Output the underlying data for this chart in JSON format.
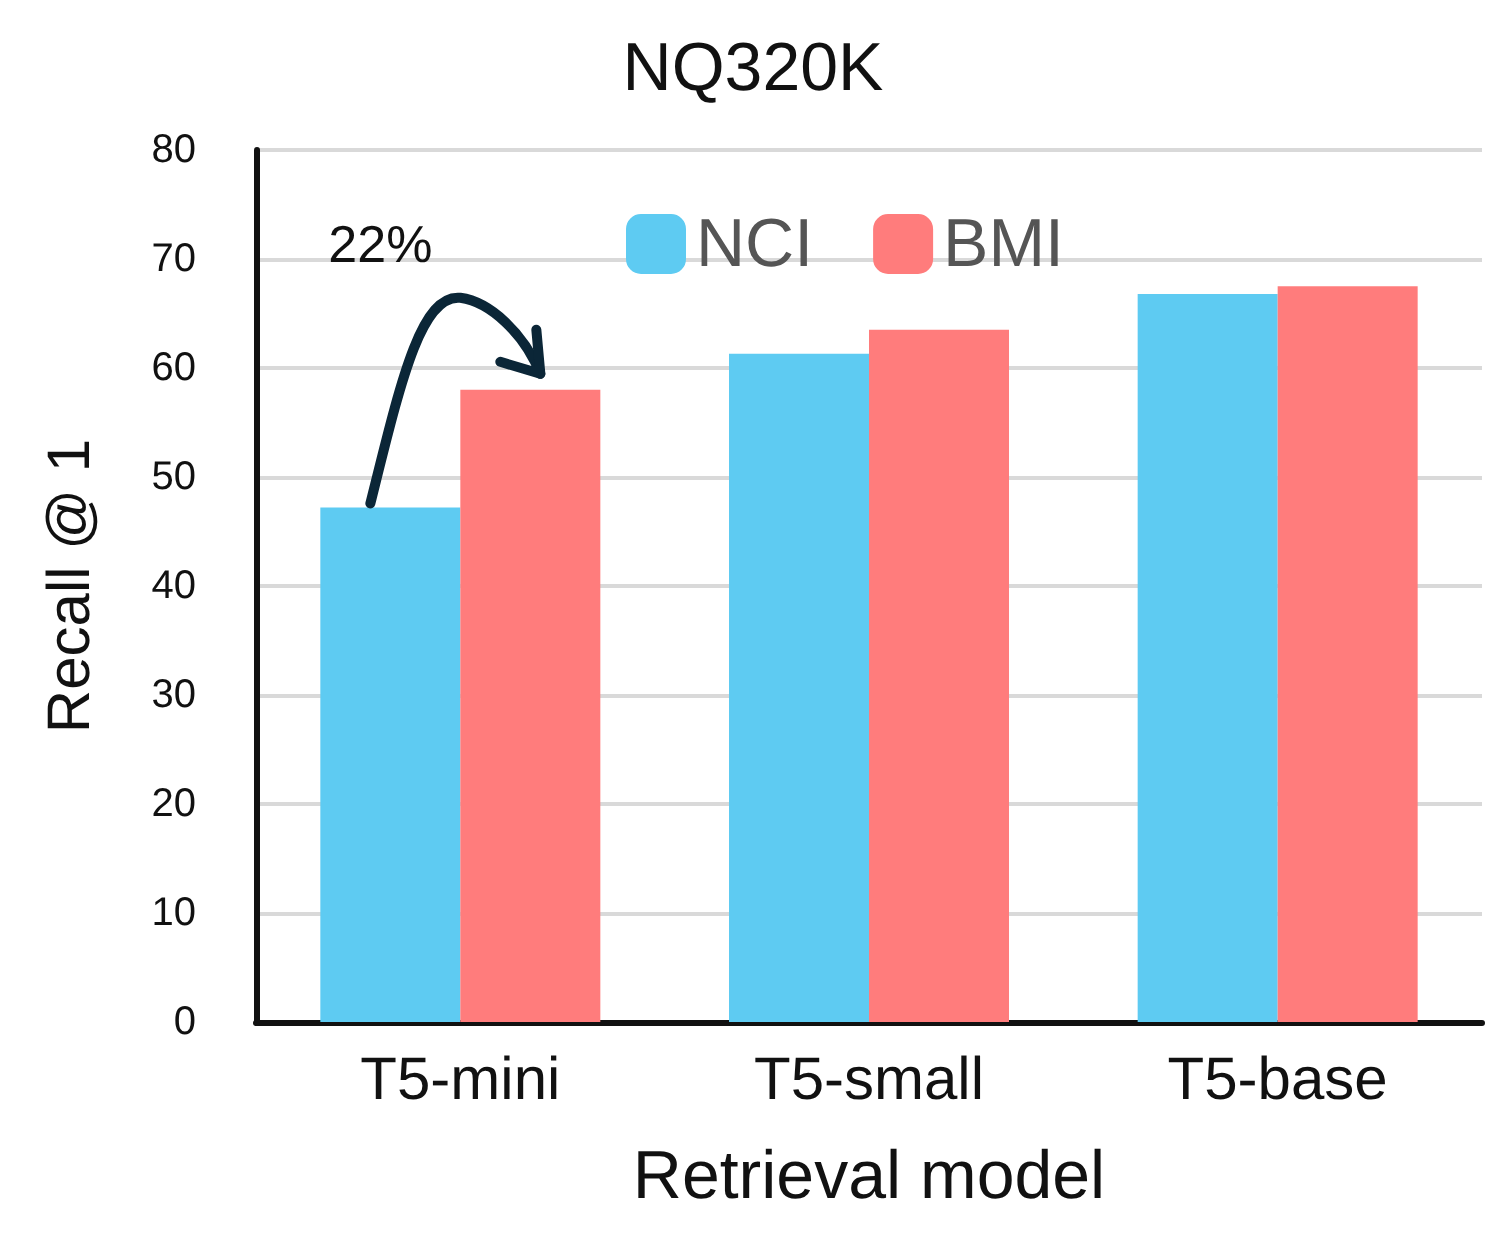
{
  "chart_data": {
    "type": "bar",
    "title": "NQ320K",
    "xlabel": "Retrieval model",
    "ylabel": "Recall @ 1",
    "categories": [
      "T5-mini",
      "T5-small",
      "T5-base"
    ],
    "series": [
      {
        "name": "NCI",
        "color": "#5ecbf2",
        "values": [
          47.2,
          61.3,
          66.8
        ]
      },
      {
        "name": "BMI",
        "color": "#ff7c7c",
        "values": [
          58.0,
          63.5,
          67.5
        ]
      }
    ],
    "ylim": [
      0,
      80
    ],
    "yticks": [
      0,
      10,
      20,
      30,
      40,
      50,
      60,
      70,
      80
    ],
    "grid": "y",
    "legend": "top",
    "annotations": [
      "22%"
    ]
  }
}
